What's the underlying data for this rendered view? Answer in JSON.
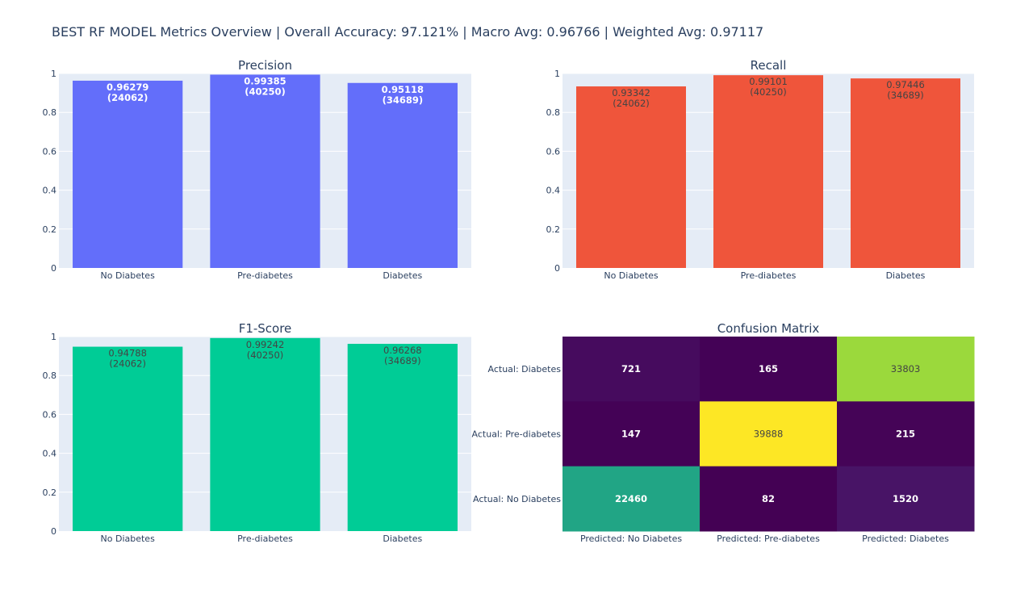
{
  "page": {
    "title": "BEST RF MODEL Metrics Overview | Overall Accuracy: 97.121% | Macro Avg: 0.96766 | Weighted Avg: 0.97117"
  },
  "colors": {
    "precision": "#636efa",
    "recall": "#ef553b",
    "f1": "#00cc96",
    "plot_bg": "#e5ecf6",
    "grid": "#ffffff",
    "text": "#2a3f5f"
  },
  "chart_data": [
    {
      "type": "bar",
      "title": "Precision",
      "categories": [
        "No Diabetes",
        "Pre-diabetes",
        "Diabetes"
      ],
      "values": [
        0.96279,
        0.99385,
        0.95118
      ],
      "labels": [
        "0.96279\n(24062)",
        "0.99385\n(40250)",
        "0.95118\n(34689)"
      ],
      "label_color": "#ffffff",
      "yticks": [
        "0",
        "0.2",
        "0.4",
        "0.6",
        "0.8",
        "1"
      ],
      "ylim": [
        0,
        1
      ]
    },
    {
      "type": "bar",
      "title": "Recall",
      "categories": [
        "No Diabetes",
        "Pre-diabetes",
        "Diabetes"
      ],
      "values": [
        0.93342,
        0.99101,
        0.97446
      ],
      "labels": [
        "0.93342\n(24062)",
        "0.99101\n(40250)",
        "0.97446\n(34689)"
      ],
      "label_color": "#444444",
      "yticks": [
        "0",
        "0.2",
        "0.4",
        "0.6",
        "0.8",
        "1"
      ],
      "ylim": [
        0,
        1
      ]
    },
    {
      "type": "bar",
      "title": "F1-Score",
      "categories": [
        "No Diabetes",
        "Pre-diabetes",
        "Diabetes"
      ],
      "values": [
        0.94788,
        0.99242,
        0.96268
      ],
      "labels": [
        "0.94788\n(24062)",
        "0.99242\n(40250)",
        "0.96268\n(34689)"
      ],
      "label_color": "#444444",
      "yticks": [
        "0",
        "0.2",
        "0.4",
        "0.6",
        "0.8",
        "1"
      ],
      "ylim": [
        0,
        1
      ]
    },
    {
      "type": "heatmap",
      "title": "Confusion Matrix",
      "x_labels": [
        "Predicted: No Diabetes",
        "Predicted: Pre-diabetes",
        "Predicted: Diabetes"
      ],
      "y_labels_top_to_bottom": [
        "Actual: Diabetes",
        "Actual: Pre-diabetes",
        "Actual: No Diabetes"
      ],
      "z_top_to_bottom": [
        [
          721,
          165,
          33803
        ],
        [
          147,
          39888,
          215
        ],
        [
          22460,
          82,
          1520
        ]
      ],
      "cell_colors_top_to_bottom": [
        [
          "#460b5e",
          "#440256",
          "#9bd93c"
        ],
        [
          "#440256",
          "#fde725",
          "#450457"
        ],
        [
          "#21a585",
          "#440154",
          "#481466"
        ]
      ],
      "text_colors_top_to_bottom": [
        [
          "#ffffff",
          "#ffffff",
          "#444444"
        ],
        [
          "#ffffff",
          "#444444",
          "#ffffff"
        ],
        [
          "#ffffff",
          "#ffffff",
          "#ffffff"
        ]
      ]
    }
  ]
}
